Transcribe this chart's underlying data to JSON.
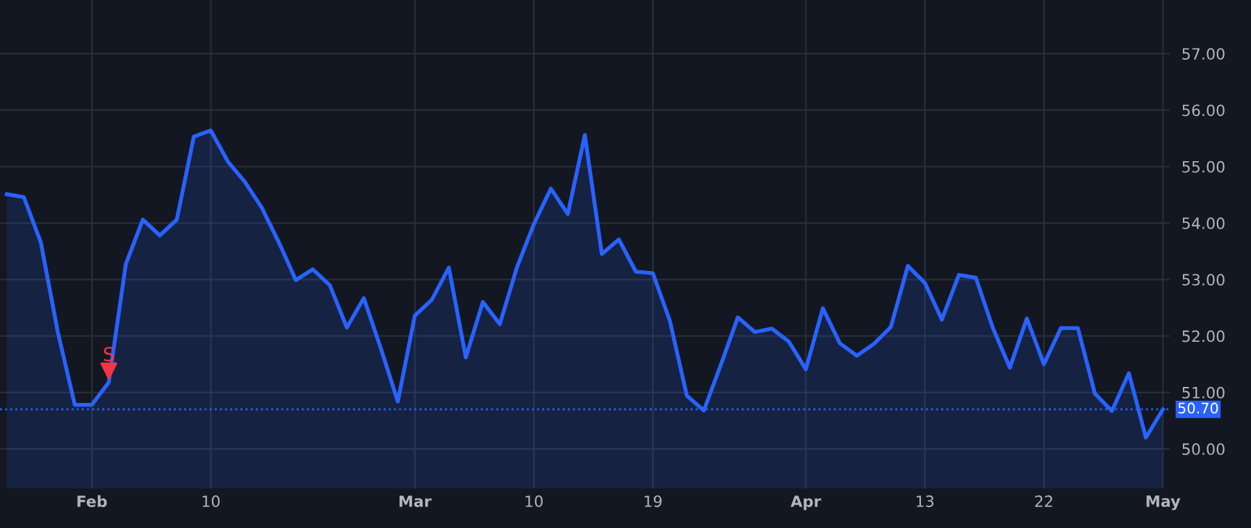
{
  "chart_data": {
    "type": "area",
    "categories": [
      null,
      null,
      null,
      null,
      null,
      "Feb",
      null,
      null,
      null,
      null,
      null,
      null,
      "10",
      null,
      null,
      null,
      null,
      null,
      null,
      null,
      null,
      null,
      null,
      null,
      "Mar",
      null,
      null,
      null,
      null,
      null,
      null,
      "10",
      null,
      null,
      null,
      null,
      null,
      null,
      "19",
      null,
      null,
      null,
      null,
      null,
      null,
      null,
      null,
      "Apr",
      null,
      null,
      null,
      null,
      null,
      null,
      "13",
      null,
      null,
      null,
      null,
      null,
      null,
      "22",
      null,
      null,
      null,
      null,
      null,
      null,
      "May"
    ],
    "series": [
      {
        "color": "#2962ff",
        "values": [
          54.51,
          54.46,
          53.66,
          52.07,
          50.78,
          50.78,
          51.18,
          53.27,
          54.06,
          53.78,
          54.06,
          55.53,
          55.64,
          55.09,
          54.73,
          54.27,
          53.66,
          52.99,
          53.18,
          52.9,
          52.15,
          52.67,
          51.78,
          50.84,
          52.36,
          52.64,
          53.21,
          51.62,
          52.6,
          52.21,
          53.21,
          53.98,
          54.61,
          54.16,
          55.56,
          53.45,
          53.71,
          53.14,
          53.11,
          52.27,
          50.94,
          50.68,
          51.49,
          52.33,
          52.07,
          52.13,
          51.9,
          51.41,
          52.49,
          51.87,
          51.65,
          51.86,
          52.16,
          53.24,
          52.94,
          52.29,
          53.08,
          53.03,
          52.14,
          51.44,
          52.31,
          51.5,
          52.14,
          52.14,
          50.98,
          50.67,
          51.34,
          50.2,
          50.7
        ]
      },
      {
        "type": "scatter",
        "name": "S",
        "color": "#f23645",
        "marker": "triangle",
        "values": [
          null,
          null,
          null,
          null,
          null,
          null,
          51.38,
          null,
          null,
          null,
          null,
          null,
          null,
          null,
          null,
          null,
          null,
          null,
          null,
          null,
          null,
          null,
          null,
          null,
          null,
          null,
          null,
          null,
          null,
          null,
          null,
          null,
          null,
          null,
          null,
          null,
          null,
          null,
          null,
          null,
          null,
          null,
          null,
          null,
          null,
          null,
          null,
          null,
          null,
          null,
          null,
          null,
          null,
          null,
          null,
          null,
          null,
          null,
          null,
          null,
          null,
          null,
          null,
          null,
          null,
          null,
          null,
          null,
          null
        ]
      }
    ],
    "ylim": [
      49.3,
      57.95
    ],
    "yticks": [
      {
        "value": 50,
        "label": "50.00"
      },
      {
        "value": 51,
        "label": "51.00"
      },
      {
        "value": 52,
        "label": "52.00"
      },
      {
        "value": 53,
        "label": "53.00"
      },
      {
        "value": 54,
        "label": "54.00"
      },
      {
        "value": 55,
        "label": "55.00"
      },
      {
        "value": 56,
        "label": "56.00"
      },
      {
        "value": 57,
        "label": "57.00"
      }
    ],
    "ref_lines": [
      {
        "axis": "y",
        "value": 50.7,
        "label": "50.70",
        "color": "#2962ff",
        "line_style": "dotted"
      }
    ],
    "grid": true,
    "legend": false
  }
}
